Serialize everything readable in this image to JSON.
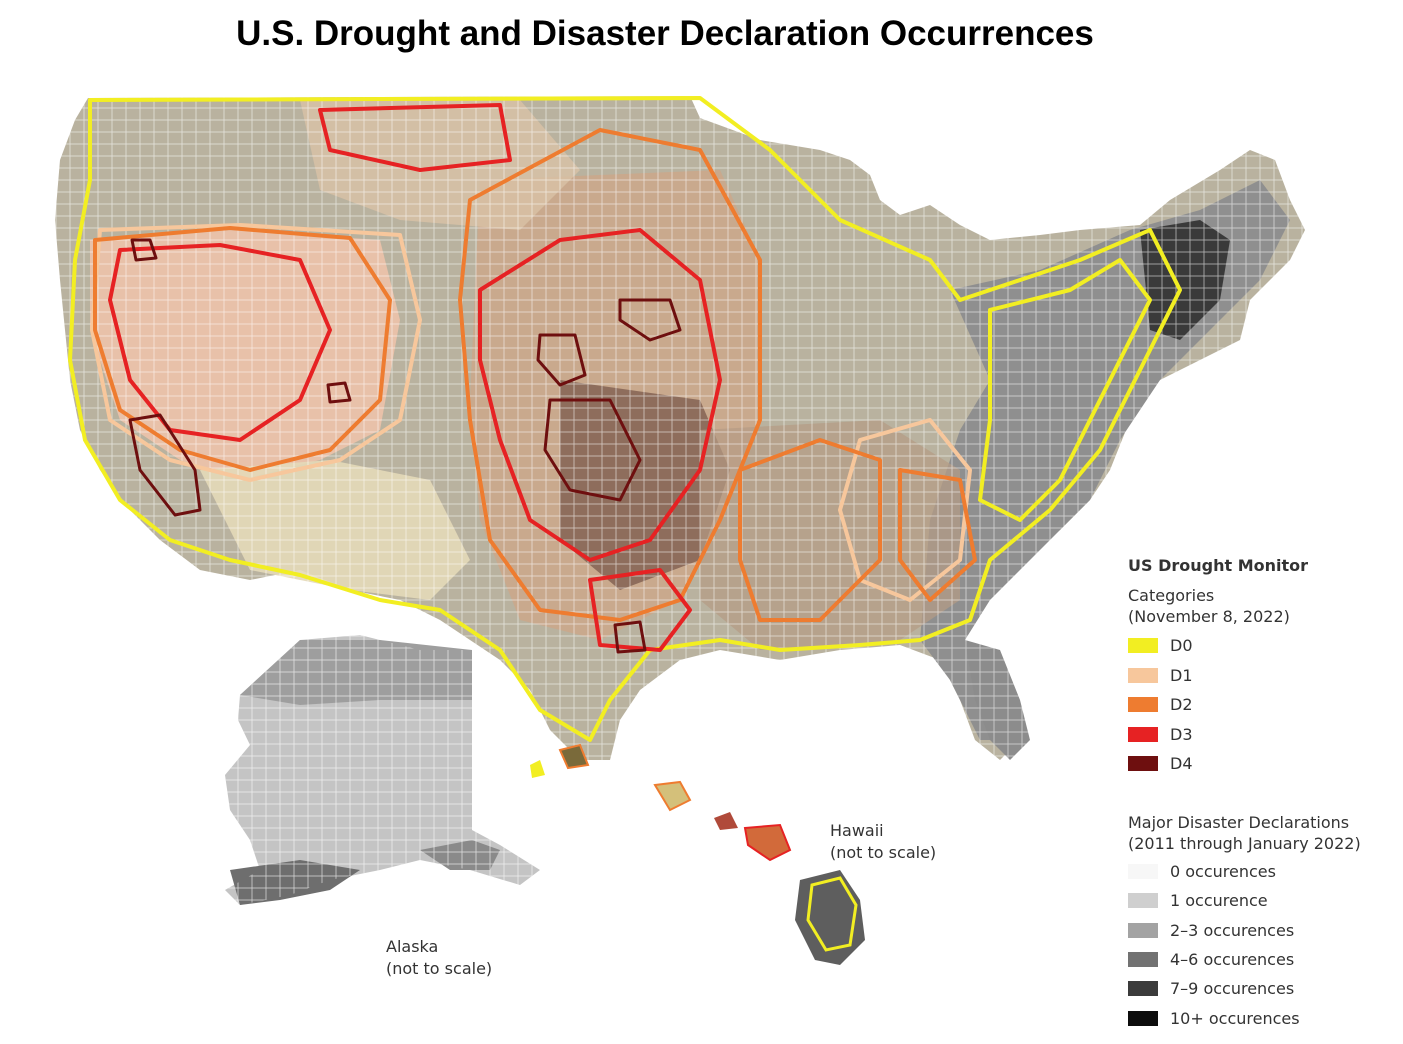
{
  "title": "U.S. Drought and Disaster Declaration Occurrences",
  "map_labels": {
    "alaska": [
      "Alaska",
      "(not to scale)"
    ],
    "hawaii": [
      "Hawaii",
      "(not to scale)"
    ]
  },
  "drought_legend": {
    "heading": "US Drought Monitor",
    "subtitle": [
      "Categories",
      "(November 8, 2022)"
    ],
    "categories": [
      {
        "label": "D0",
        "color": "#f2ee22"
      },
      {
        "label": "D1",
        "color": "#f7c79c"
      },
      {
        "label": "D2",
        "color": "#ee7c30"
      },
      {
        "label": "D3",
        "color": "#e62223"
      },
      {
        "label": "D4",
        "color": "#6e0f0f"
      }
    ]
  },
  "disaster_legend": {
    "subtitle": [
      "Major Disaster Declarations",
      "(2011 through January 2022)"
    ],
    "categories": [
      {
        "label": "0 occurences",
        "color": "#f7f7f7"
      },
      {
        "label": "1 occurence",
        "color": "#cfcfcf"
      },
      {
        "label": "2–3 occurences",
        "color": "#a3a3a3"
      },
      {
        "label": "4–6 occurences",
        "color": "#727272"
      },
      {
        "label": "7–9 occurences",
        "color": "#3b3b3b"
      },
      {
        "label": "10+ occurences",
        "color": "#0d0d0d"
      }
    ]
  }
}
